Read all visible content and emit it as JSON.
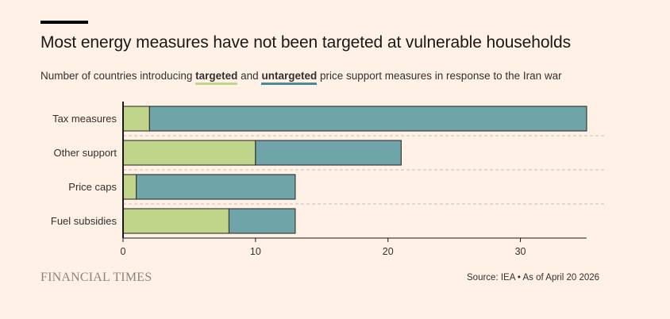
{
  "header": {
    "title": "Most energy measures have not been targeted at vulnerable households",
    "subtitle_prefix": "Number of countries introducing",
    "legend_targeted": "targeted",
    "subtitle_and": "and",
    "legend_untargeted": "untargeted",
    "subtitle_suffix": "price support measures in response to the Iran war"
  },
  "footer": {
    "brand": "FINANCIAL TIMES",
    "source": "Source: IEA • As of April 20 2026"
  },
  "colors": {
    "targeted": "#c1d58a",
    "untargeted": "#6fa4a8",
    "background": "#fff1e5"
  },
  "chart_data": {
    "type": "bar",
    "orientation": "horizontal",
    "stacked": true,
    "categories": [
      "Tax measures",
      "Other support",
      "Price caps",
      "Fuel subsidies"
    ],
    "series": [
      {
        "name": "targeted",
        "values": [
          2,
          10,
          1,
          8
        ]
      },
      {
        "name": "untargeted",
        "values": [
          33,
          11,
          12,
          5
        ]
      }
    ],
    "xlim": [
      0,
      35
    ],
    "xticks": [
      0,
      10,
      20,
      30
    ],
    "xlabel": "",
    "ylabel": "",
    "grid": false
  }
}
